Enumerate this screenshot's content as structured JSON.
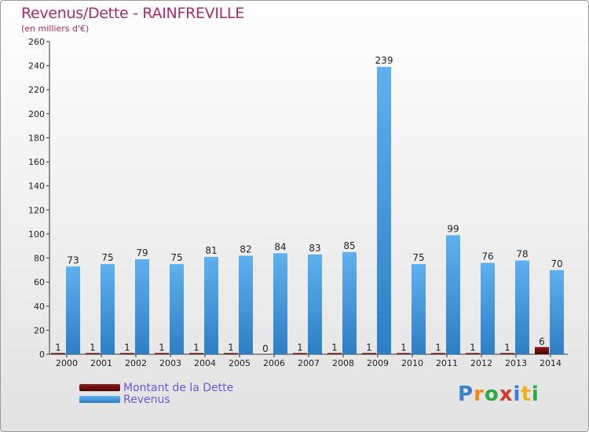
{
  "chart_data": {
    "type": "bar",
    "title": "Revenus/Dette - RAINFREVILLE",
    "subtitle": "(en milliers d'€)",
    "categories": [
      "2000",
      "2001",
      "2002",
      "2003",
      "2004",
      "2005",
      "2006",
      "2007",
      "2008",
      "2009",
      "2010",
      "2011",
      "2012",
      "2013",
      "2014"
    ],
    "series": [
      {
        "name": "Montant de la Dette",
        "color": "#6b0a0a",
        "values": [
          1,
          1,
          1,
          1,
          1,
          1,
          0,
          1,
          1,
          1,
          1,
          1,
          1,
          1,
          6
        ]
      },
      {
        "name": "Revenus",
        "color": "#4a9fe0",
        "values": [
          73,
          75,
          79,
          75,
          81,
          82,
          84,
          83,
          85,
          239,
          75,
          99,
          76,
          78,
          70
        ]
      }
    ],
    "yticks": [
      0,
      20,
      40,
      60,
      80,
      100,
      120,
      140,
      160,
      180,
      200,
      220,
      240,
      260
    ],
    "ylim": [
      0,
      260
    ],
    "legend_position": "bottom-left"
  },
  "brand": {
    "letters": [
      "P",
      "r",
      "o",
      "x",
      "i",
      "t",
      "i"
    ],
    "colors": [
      "#3a7fd0",
      "#f08a1a",
      "#2aa84a",
      "#d23a2a",
      "#3a7fd0",
      "#f0b01a",
      "#2aa84a"
    ]
  }
}
